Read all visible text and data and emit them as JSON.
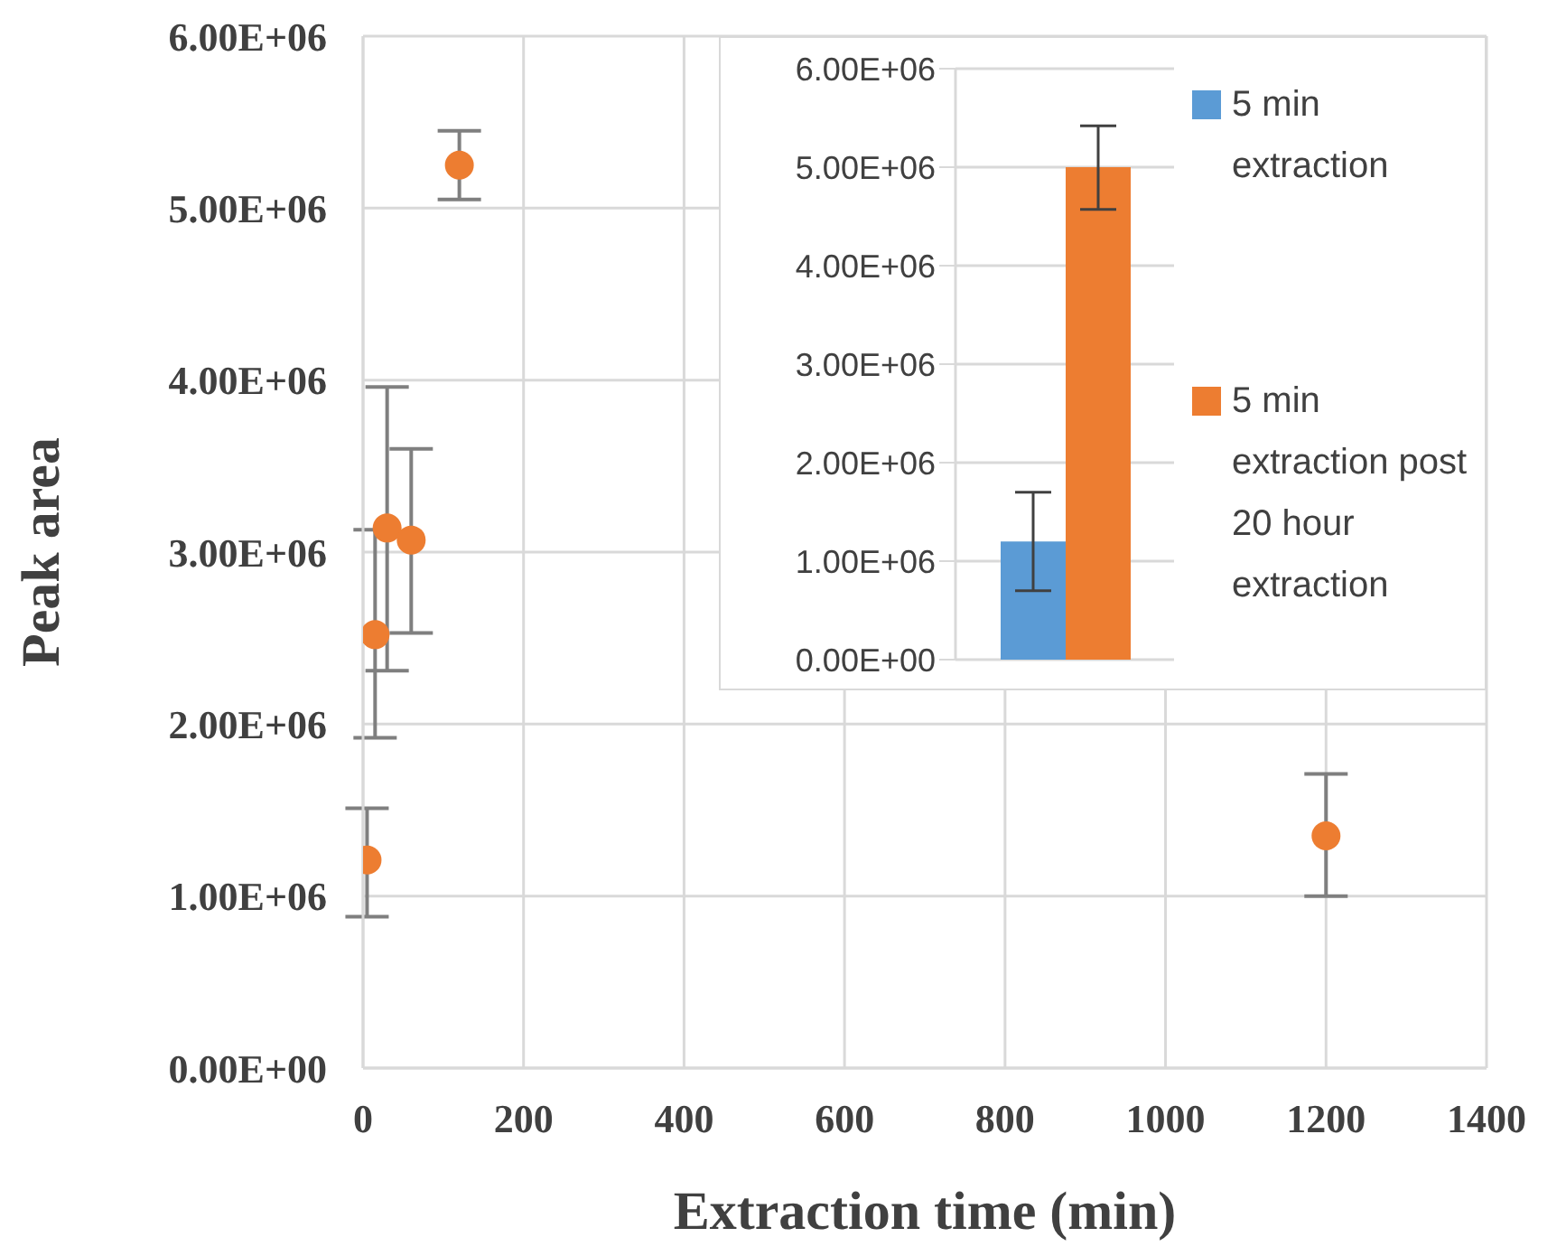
{
  "chart_data": [
    {
      "type": "scatter",
      "xlabel": "Extraction time (min)",
      "ylabel": "Peak area",
      "x": [
        5,
        15,
        30,
        60,
        120,
        1200
      ],
      "series": [
        {
          "color": "#ed7d31",
          "values": [
            1210000,
            2520000,
            3140000,
            3070000,
            5250000,
            1350000
          ],
          "errors": [
            [
              880000,
              1510000
            ],
            [
              1920000,
              3130000
            ],
            [
              2310000,
              3960000
            ],
            [
              2530000,
              3600000
            ],
            [
              5050000,
              5450000
            ],
            [
              1000000,
              1710000
            ]
          ]
        }
      ],
      "xlim": [
        0,
        1400
      ],
      "xticks": [
        0,
        200,
        400,
        600,
        800,
        1000,
        1200,
        1400
      ],
      "ylim": [
        0,
        6000000
      ],
      "yticks": [
        {
          "value": 0,
          "label": "0.00E+00"
        },
        {
          "value": 1000000,
          "label": "1.00E+06"
        },
        {
          "value": 2000000,
          "label": "2.00E+06"
        },
        {
          "value": 3000000,
          "label": "3.00E+06"
        },
        {
          "value": 4000000,
          "label": "4.00E+06"
        },
        {
          "value": 5000000,
          "label": "5.00E+06"
        },
        {
          "value": 6000000,
          "label": "6.00E+06"
        }
      ],
      "grid": true,
      "marker": "circle"
    },
    {
      "type": "bar",
      "categories": [
        null
      ],
      "series": [
        {
          "name": "5 min extraction",
          "color": "#5b9bd5",
          "values": [
            1200000
          ],
          "errors": [
            [
              700000,
              1700000
            ]
          ]
        },
        {
          "name": "5 min extraction post 20 hour extraction",
          "color": "#ed7d31",
          "values": [
            5000000
          ],
          "errors": [
            [
              4570000,
              5420000
            ]
          ]
        }
      ],
      "ylim": [
        0,
        6000000
      ],
      "yticks": [
        {
          "value": 0,
          "label": "0.00E+00"
        },
        {
          "value": 1000000,
          "label": "1.00E+06"
        },
        {
          "value": 2000000,
          "label": "2.00E+06"
        },
        {
          "value": 3000000,
          "label": "3.00E+06"
        },
        {
          "value": 4000000,
          "label": "4.00E+06"
        },
        {
          "value": 5000000,
          "label": "5.00E+06"
        },
        {
          "value": 6000000,
          "label": "6.00E+06"
        }
      ],
      "grid": "y",
      "legend": "right"
    }
  ]
}
